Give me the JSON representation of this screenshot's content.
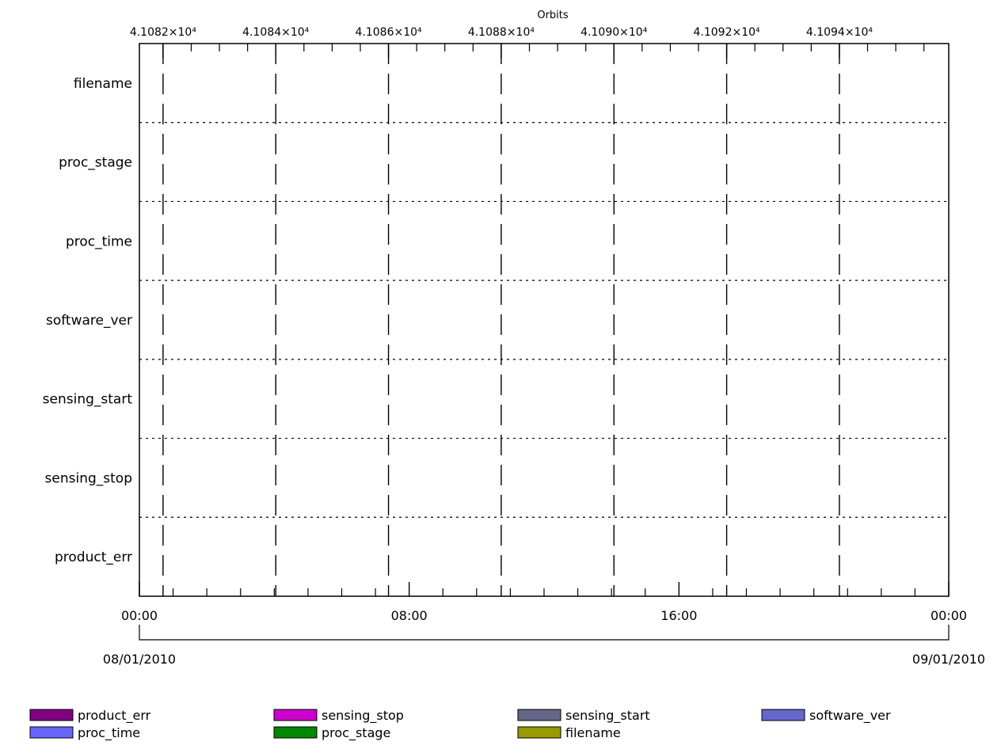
{
  "chart_data": {
    "type": "table",
    "title": "Orbits",
    "top_axis": {
      "label": "Orbits",
      "tick_labels": [
        "4.1082×10⁴",
        "4.1084×10⁴",
        "4.1086×10⁴",
        "4.1088×10⁴",
        "4.1090×10⁴",
        "4.1092×10⁴",
        "4.1094×10⁴"
      ],
      "major_orbits": [
        41082,
        41084,
        41086,
        41088,
        41090,
        41092,
        41094
      ],
      "orbit_range": [
        41081.58,
        41095.94
      ],
      "minor_step": 0.5
    },
    "bottom_axis": {
      "tick_labels": [
        "00:00",
        "08:00",
        "16:00",
        "00:00"
      ],
      "tick_hours": [
        0,
        8,
        16,
        24
      ],
      "minor_step_hours": 1,
      "hour_range": [
        0,
        24
      ],
      "date_start": "08/01/2010",
      "date_end": "09/01/2010"
    },
    "rows": [
      "filename",
      "proc_stage",
      "proc_time",
      "software_ver",
      "sensing_start",
      "sensing_stop",
      "product_err"
    ],
    "grid": true,
    "legend_position": "bottom",
    "legend": [
      {
        "name": "product_err",
        "color": "#800080"
      },
      {
        "name": "sensing_stop",
        "color": "#cc00cc"
      },
      {
        "name": "sensing_start",
        "color": "#666688"
      },
      {
        "name": "software_ver",
        "color": "#6666cc"
      },
      {
        "name": "proc_time",
        "color": "#6666ff"
      },
      {
        "name": "proc_stage",
        "color": "#008800"
      },
      {
        "name": "filename",
        "color": "#999900"
      }
    ]
  }
}
